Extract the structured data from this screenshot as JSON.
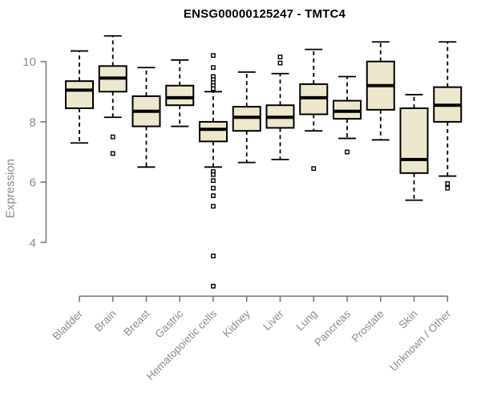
{
  "page": {
    "background": "#ffffff"
  },
  "chart_data": {
    "type": "boxplot",
    "title": "ENSG00000125247 - TMTC4",
    "xlabel": "",
    "ylabel": "Expression",
    "yticks": [
      4,
      6,
      8,
      10
    ],
    "ylim": [
      2.2,
      11.2
    ],
    "grid": false,
    "legend_position": "none",
    "colors": {
      "box_fill": "#EDE8CD",
      "box_stroke": "#000000",
      "median": "#000000",
      "whisker": "#000000",
      "outlier_fill": "#FFFFFF",
      "axis_line": "#7B7B7B",
      "axis_text": "#8C8C8C",
      "title": "#000000"
    },
    "categories": [
      "Bladder",
      "Brain",
      "Breast",
      "Gastric",
      "Hematopoietic cells",
      "Kidney",
      "Liver",
      "Lung",
      "Pancreas",
      "Prostate",
      "Skin",
      "Unknown / Other"
    ],
    "series": [
      {
        "name": "Bladder",
        "low": 7.3,
        "q1": 8.45,
        "median": 9.05,
        "q3": 9.35,
        "high": 10.35,
        "outliers": []
      },
      {
        "name": "Brain",
        "low": 8.15,
        "q1": 9.0,
        "median": 9.45,
        "q3": 9.85,
        "high": 10.85,
        "outliers": [
          7.5,
          6.95
        ]
      },
      {
        "name": "Breast",
        "low": 6.5,
        "q1": 7.85,
        "median": 8.35,
        "q3": 8.85,
        "high": 9.8,
        "outliers": []
      },
      {
        "name": "Gastric",
        "low": 7.85,
        "q1": 8.55,
        "median": 8.8,
        "q3": 9.2,
        "high": 10.05,
        "outliers": []
      },
      {
        "name": "Hematopoietic cells",
        "low": 6.5,
        "q1": 7.35,
        "median": 7.75,
        "q3": 8.0,
        "high": 9.0,
        "outliers": [
          10.2,
          9.8,
          9.5,
          9.4,
          9.3,
          9.2,
          9.1,
          6.35,
          6.25,
          6.05,
          5.8,
          5.55,
          5.2,
          3.55,
          2.55
        ]
      },
      {
        "name": "Kidney",
        "low": 6.65,
        "q1": 7.7,
        "median": 8.15,
        "q3": 8.5,
        "high": 9.65,
        "outliers": []
      },
      {
        "name": "Liver",
        "low": 6.75,
        "q1": 7.8,
        "median": 8.15,
        "q3": 8.55,
        "high": 9.6,
        "outliers": [
          10.15,
          9.95
        ]
      },
      {
        "name": "Lung",
        "low": 7.7,
        "q1": 8.25,
        "median": 8.8,
        "q3": 9.25,
        "high": 10.4,
        "outliers": [
          6.45
        ]
      },
      {
        "name": "Pancreas",
        "low": 7.45,
        "q1": 8.1,
        "median": 8.35,
        "q3": 8.7,
        "high": 9.5,
        "outliers": [
          7.0
        ]
      },
      {
        "name": "Prostate",
        "low": 7.4,
        "q1": 8.4,
        "median": 9.2,
        "q3": 10.0,
        "high": 10.65,
        "outliers": []
      },
      {
        "name": "Skin",
        "low": 5.4,
        "q1": 6.3,
        "median": 6.75,
        "q3": 8.45,
        "high": 8.9,
        "outliers": []
      },
      {
        "name": "Unknown / Other",
        "low": 6.2,
        "q1": 8.0,
        "median": 8.55,
        "q3": 9.15,
        "high": 10.65,
        "outliers": [
          5.95,
          5.8
        ]
      }
    ]
  }
}
